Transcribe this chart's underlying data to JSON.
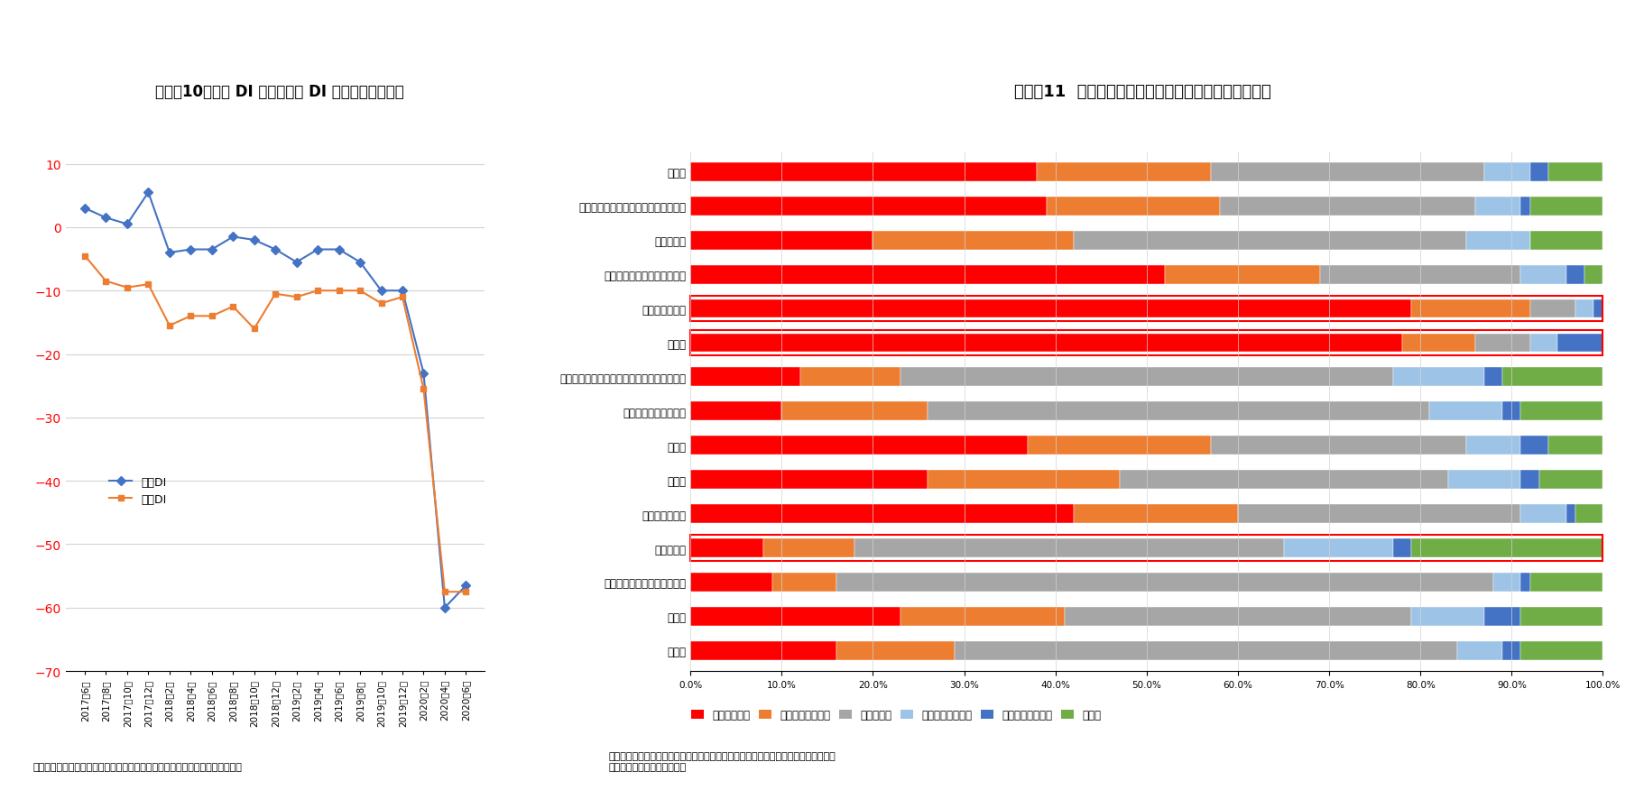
{
  "chart1_title": "図表－10　売上 DI および利益 DI の推移（北海道）",
  "chart1_xlabel_list": [
    "2017年6月",
    "2017年8月",
    "2017年10月",
    "2017年12月",
    "2018年2月",
    "2018年4月",
    "2018年6月",
    "2018年8月",
    "2018年10月",
    "2018年12月",
    "2019年2月",
    "2019年4月",
    "2019年6月",
    "2019年8月",
    "2019年10月",
    "2019年12月",
    "2020年2月",
    "2020年4月",
    "2020年6月"
  ],
  "uriage_di": [
    3.0,
    1.5,
    0.5,
    5.5,
    -4.0,
    -3.5,
    -3.5,
    -1.5,
    -2.0,
    -3.5,
    -5.5,
    -3.5,
    -3.5,
    -5.5,
    -10.0,
    -10.0,
    -23.0,
    -60.0,
    -56.5
  ],
  "rieki_di": [
    -4.5,
    -8.5,
    -9.5,
    -9.0,
    -15.5,
    -14.0,
    -14.0,
    -12.5,
    -16.0,
    -10.5,
    -11.0,
    -10.0,
    -10.0,
    -10.0,
    -12.0,
    -11.0,
    -25.5,
    -57.5,
    -57.5
  ],
  "chart1_ylim": [
    -70,
    10
  ],
  "chart1_yticks": [
    10,
    0,
    -10,
    -20,
    -30,
    -40,
    -50,
    -60,
    -70
  ],
  "chart1_source": "（出所）北洋銀行「道内企業の経営動向調査」を基にニッセイ基礎研究所作成",
  "uriage_color": "#4472C4",
  "rieki_color": "#ED7D31",
  "chart2_title": "図表－11  新型コロナウイルス感染拡大に伴う経営状況",
  "categories": [
    "全業種",
    "サービス業（他に分類されないもの）",
    "医療、福祉",
    "生活関連サービス業、娯楽業",
    "飲食サービス業",
    "宿泊業",
    "学術研究サービス業、専門・技術サービス業",
    "不動産業、物品賃貸業",
    "小売業",
    "卸売業",
    "運輸業、郵便業",
    "情報通信業",
    "電気・ガス・熱供給・水道業",
    "製造業",
    "建設業"
  ],
  "akka": [
    38.0,
    39.0,
    20.0,
    52.0,
    79.0,
    78.0,
    12.0,
    10.0,
    37.0,
    26.0,
    42.0,
    8.0,
    9.0,
    23.0,
    16.0
  ],
  "yaya_akka": [
    19.0,
    19.0,
    22.0,
    17.0,
    13.0,
    8.0,
    11.0,
    16.0,
    20.0,
    21.0,
    18.0,
    10.0,
    7.0,
    18.0,
    13.0
  ],
  "kawarazu": [
    30.0,
    28.0,
    43.0,
    22.0,
    5.0,
    6.0,
    54.0,
    55.0,
    28.0,
    36.0,
    31.0,
    47.0,
    72.0,
    38.0,
    55.0
  ],
  "yaya_kouten": [
    5.0,
    5.0,
    7.0,
    5.0,
    2.0,
    3.0,
    10.0,
    8.0,
    6.0,
    8.0,
    5.0,
    12.0,
    3.0,
    8.0,
    5.0
  ],
  "kouten": [
    2.0,
    1.0,
    0.0,
    2.0,
    1.0,
    5.0,
    2.0,
    2.0,
    3.0,
    2.0,
    1.0,
    2.0,
    1.0,
    4.0,
    2.0
  ],
  "mukaitou": [
    6.0,
    8.0,
    8.0,
    2.0,
    0.0,
    0.0,
    11.0,
    9.0,
    6.0,
    7.0,
    3.0,
    21.0,
    8.0,
    9.0,
    9.0
  ],
  "bar_colors": [
    "#FF0000",
    "#ED7D31",
    "#A6A6A6",
    "#9DC3E6",
    "#4472C4",
    "#70AD47"
  ],
  "legend_labels": [
    "悪化している",
    "やや悪化している",
    "変わらない",
    "やや好転している",
    "好転してしている",
    "無回答"
  ],
  "chart2_source": "（出所）札幌市経済観光局「新型コロナウィルス感染症に伴う市内実態調査結果」を\n基にニッセイ基礎研究所作成",
  "boxed_categories": [
    "飲食サービス業",
    "宿泊業",
    "情報通信業"
  ],
  "bg_color": "#FFFFFF"
}
